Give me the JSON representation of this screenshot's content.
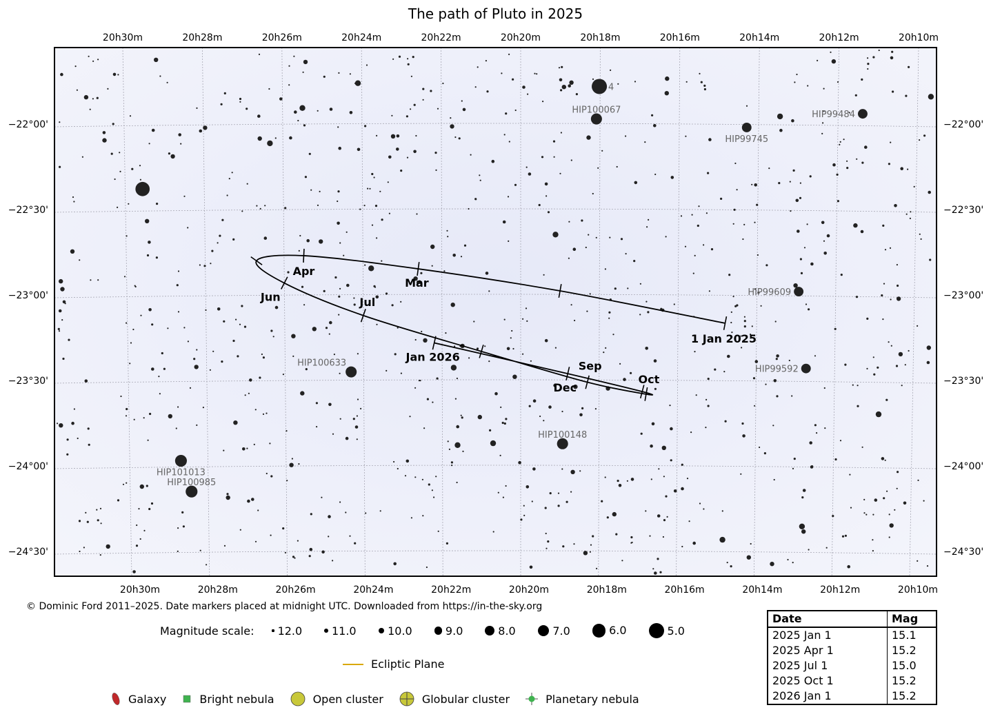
{
  "title": "The path of Pluto in 2025",
  "credit": "© Dominic Ford 2011–2025. Date markers placed at midnight UTC. Downloaded from https://in-the-sky.org",
  "chart_data": {
    "type": "scatter",
    "title": "The path of Pluto in 2025",
    "ra_hour": 20,
    "ra_axis_top": [
      "20h30m",
      "20h28m",
      "20h26m",
      "20h24m",
      "20h22m",
      "20h20m",
      "20h18m",
      "20h16m",
      "20h14m",
      "20h12m",
      "20h10m"
    ],
    "ra_axis_bottom": [
      "20h30m",
      "20h28m",
      "20h26m",
      "20h24m",
      "20h22m",
      "20h20m",
      "20h18m",
      "20h16m",
      "20h14m",
      "20h12m",
      "20h10m"
    ],
    "dec_axis": [
      "−22°00'",
      "−22°30'",
      "−23°00'",
      "−23°30'",
      "−24°00'",
      "−24°30'"
    ],
    "dec_values": [
      -22.0,
      -22.5,
      -23.0,
      -23.5,
      -24.0,
      -24.5
    ],
    "ra_values_min": [
      30,
      28,
      26,
      24,
      22,
      20,
      18,
      16,
      14,
      12,
      10
    ],
    "grid": true,
    "path": [
      {
        "label": "1 Jan 2025",
        "ra_min": 14.8,
        "dec": -23.165
      },
      {
        "label": "",
        "ra_min": 19.0,
        "dec": -22.976
      },
      {
        "label": "Mar",
        "ra_min": 22.6,
        "dec": -22.847
      },
      {
        "label": "Apr",
        "ra_min": 25.5,
        "dec": -22.77
      },
      {
        "label": "",
        "ra_min": 26.7,
        "dec": -22.8
      },
      {
        "label": "Jun",
        "ra_min": 26.0,
        "dec": -22.93
      },
      {
        "label": "Jul",
        "ra_min": 24.0,
        "dec": -23.12
      },
      {
        "label": "",
        "ra_min": 21.0,
        "dec": -23.33
      },
      {
        "label": "Sep",
        "ra_min": 18.3,
        "dec": -23.51
      },
      {
        "label": "Oct",
        "ra_min": 16.8,
        "dec": -23.58
      },
      {
        "label": "",
        "ra_min": 16.9,
        "dec": -23.565
      },
      {
        "label": "Dec",
        "ra_min": 18.8,
        "dec": -23.46
      },
      {
        "label": "Jan 2026",
        "ra_min": 22.2,
        "dec": -23.28
      }
    ],
    "labeled_stars": [
      {
        "name": "4",
        "ra_min": 18.02,
        "dec": -21.78,
        "mag": 5.0
      },
      {
        "name": "HIP100067",
        "ra_min": 18.09,
        "dec": -21.97,
        "mag": 7.2
      },
      {
        "name": "HIP99745",
        "ra_min": 14.3,
        "dec": -22.02,
        "mag": 8.0
      },
      {
        "name": "HIP99484",
        "ra_min": 11.38,
        "dec": -21.94,
        "mag": 8.0
      },
      {
        "name": "HIP99609",
        "ra_min": 12.94,
        "dec": -22.98,
        "mag": 8.0
      },
      {
        "name": "HIP99592",
        "ra_min": 12.73,
        "dec": -23.43,
        "mag": 8.0
      },
      {
        "name": "HIP100633",
        "ra_min": 24.32,
        "dec": -23.45,
        "mag": 7.2
      },
      {
        "name": "HIP100148",
        "ra_min": 18.93,
        "dec": -23.87,
        "mag": 7.2
      },
      {
        "name": "HIP101013",
        "ra_min": 28.69,
        "dec": -23.97,
        "mag": 6.8
      },
      {
        "name": "HIP100985",
        "ra_min": 28.43,
        "dec": -24.15,
        "mag": 6.8
      },
      {
        "name": "",
        "ra_min": 29.56,
        "dec": -22.38,
        "mag": 5.5
      }
    ]
  },
  "legend": {
    "magnitude_label": "Magnitude scale:",
    "magnitudes": [
      "12.0",
      "11.0",
      "10.0",
      "9.0",
      "8.0",
      "7.0",
      "6.0",
      "5.0"
    ],
    "ecliptic": "Ecliptic Plane",
    "ecliptic_color": "#d9a800",
    "objects": [
      {
        "label": "Galaxy",
        "color": "#c0282a"
      },
      {
        "label": "Bright nebula",
        "color": "#3fb34f"
      },
      {
        "label": "Open cluster",
        "color": "#c8c83a"
      },
      {
        "label": "Globular cluster",
        "color": "#c8c83a"
      },
      {
        "label": "Planetary nebula",
        "color": "#3fb34f"
      }
    ]
  },
  "table": {
    "headers": [
      "Date",
      "Mag"
    ],
    "rows": [
      [
        "2025 Jan 1",
        "15.1"
      ],
      [
        "2025 Apr 1",
        "15.2"
      ],
      [
        "2025 Jul 1",
        "15.0"
      ],
      [
        "2025 Oct 1",
        "15.2"
      ],
      [
        "2026 Jan 1",
        "15.2"
      ]
    ]
  }
}
